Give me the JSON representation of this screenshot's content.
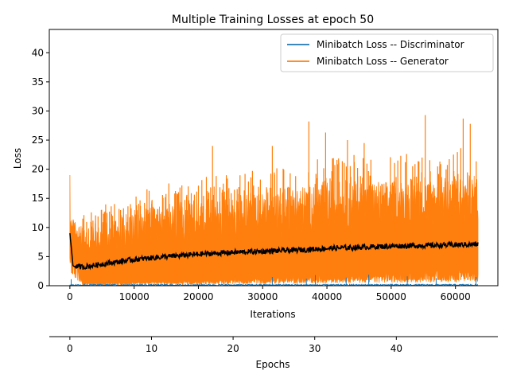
{
  "chart_data": {
    "type": "line",
    "title": "Multiple Training Losses at epoch 50",
    "xlabel": "Iterations",
    "ylabel": "Loss",
    "secondary_xlabel": "Epochs",
    "xlim": [
      -3200,
      66600
    ],
    "ylim": [
      0,
      44
    ],
    "xticks": [
      0,
      10000,
      20000,
      30000,
      40000,
      50000,
      60000
    ],
    "yticks": [
      0,
      5,
      10,
      15,
      20,
      25,
      30,
      35,
      40
    ],
    "epoch_ticks": [
      0,
      10,
      20,
      30,
      40
    ],
    "iterations_per_epoch": 1270,
    "total_iterations": 63500,
    "grid": false,
    "legend_position": "top-right",
    "series": [
      {
        "name": "Minibatch Loss -- Discriminator",
        "color": "#1f77b4",
        "typical_range": [
          0,
          0.5
        ],
        "spikes": [
          [
            200,
            1.1
          ],
          [
            31500,
            1.5
          ],
          [
            36800,
            1.2
          ],
          [
            38200,
            1.8
          ],
          [
            43000,
            1.4
          ],
          [
            46500,
            1.9
          ],
          [
            52500,
            1.6
          ],
          [
            57000,
            1.3
          ],
          [
            63200,
            1.5
          ]
        ]
      },
      {
        "name": "Minibatch Loss -- Generator",
        "color": "#ff7f0e",
        "start_peak": [
          0,
          19.0
        ],
        "envelope": {
          "x": [
            0,
            2000,
            10000,
            20000,
            30000,
            40000,
            50000,
            60000,
            63500
          ],
          "typical_low": [
            8,
            0.5,
            0.8,
            1.0,
            1.5,
            2.0,
            2.5,
            3.0,
            3.0
          ],
          "typical_high": [
            12,
            10,
            13,
            15,
            16,
            18,
            18,
            19,
            19
          ]
        },
        "peaks": [
          [
            22200,
            24.0
          ],
          [
            31500,
            24.0
          ],
          [
            37200,
            28.2
          ],
          [
            39800,
            26.3
          ],
          [
            43200,
            25.0
          ],
          [
            45800,
            24.5
          ],
          [
            55300,
            29.3
          ],
          [
            61200,
            28.7
          ],
          [
            62300,
            27.8
          ]
        ]
      },
      {
        "name": "",
        "color": "#000000",
        "role": "running average",
        "x": [
          0,
          500,
          2000,
          5000,
          10000,
          15000,
          20000,
          25000,
          30000,
          35000,
          40000,
          45000,
          50000,
          55000,
          60000,
          63500
        ],
        "y": [
          9.0,
          3.4,
          3.2,
          3.7,
          4.5,
          5.0,
          5.4,
          5.7,
          5.9,
          6.1,
          6.4,
          6.6,
          6.8,
          6.9,
          7.0,
          7.1
        ]
      }
    ]
  }
}
